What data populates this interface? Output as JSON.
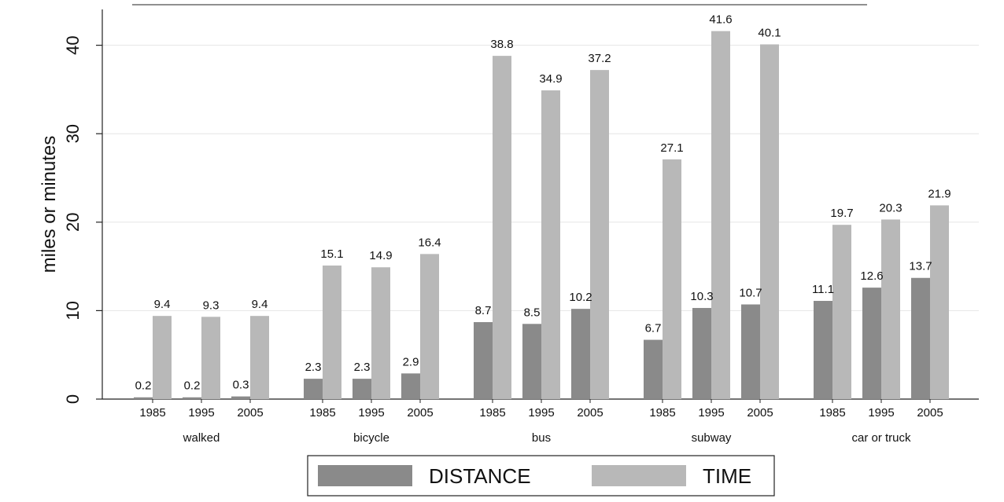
{
  "chart_data": {
    "type": "bar",
    "ylabel": "miles or minutes",
    "xlabel": "",
    "title": "",
    "ylim": [
      0,
      45
    ],
    "yticks": [
      0,
      10,
      20,
      30,
      40
    ],
    "grid": true,
    "legend_position": "bottom-center",
    "groups": [
      {
        "label": "walked",
        "years": [
          "1985",
          "1995",
          "2005"
        ],
        "distance": [
          0.2,
          0.2,
          0.3
        ],
        "time": [
          9.4,
          9.3,
          9.4
        ]
      },
      {
        "label": "bicycle",
        "years": [
          "1985",
          "1995",
          "2005"
        ],
        "distance": [
          2.3,
          2.3,
          2.9
        ],
        "time": [
          15.1,
          14.9,
          16.4
        ]
      },
      {
        "label": "bus",
        "years": [
          "1985",
          "1995",
          "2005"
        ],
        "distance": [
          8.7,
          8.5,
          10.2
        ],
        "time": [
          38.8,
          34.9,
          37.2
        ]
      },
      {
        "label": "subway",
        "years": [
          "1985",
          "1995",
          "2005"
        ],
        "distance": [
          6.7,
          10.3,
          10.7
        ],
        "time": [
          27.1,
          41.6,
          40.1
        ]
      },
      {
        "label": "car or truck",
        "years": [
          "1985",
          "1995",
          "2005"
        ],
        "distance": [
          11.1,
          12.6,
          13.7
        ],
        "time": [
          19.7,
          20.3,
          21.9
        ]
      }
    ],
    "series": [
      {
        "name": "DISTANCE",
        "color": "#8a8a8a"
      },
      {
        "name": "TIME",
        "color": "#b8b8b8"
      }
    ]
  }
}
